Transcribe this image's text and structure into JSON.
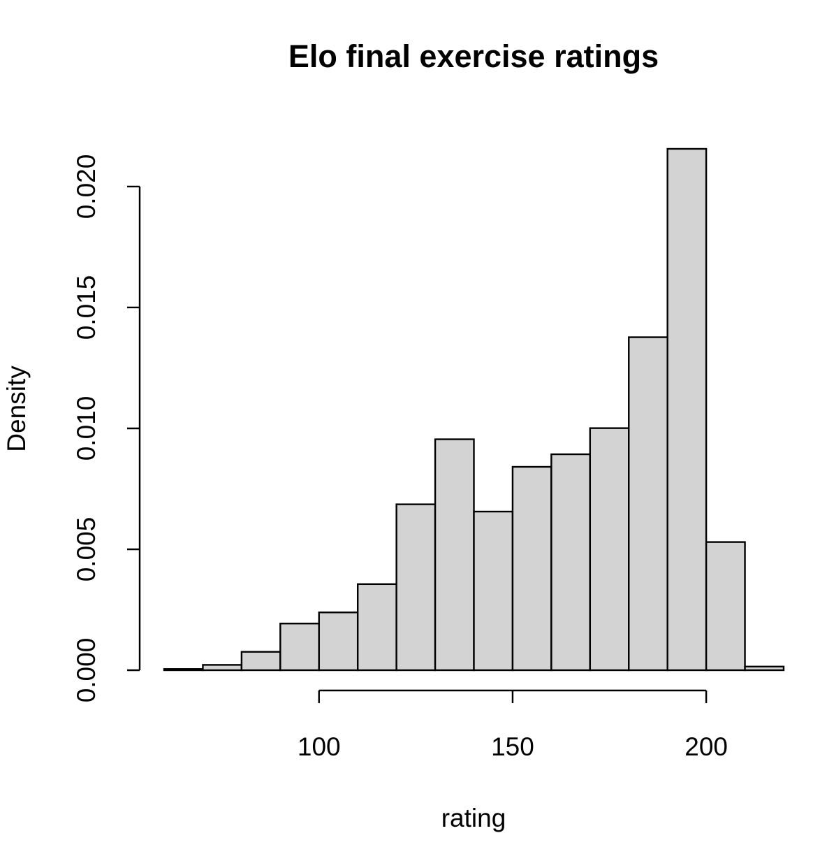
{
  "chart_data": {
    "type": "bar",
    "title": "Elo final exercise ratings",
    "xlabel": "rating",
    "ylabel": "Density",
    "bin_width": 10,
    "bin_starts": [
      60,
      70,
      80,
      90,
      100,
      110,
      120,
      130,
      140,
      150,
      160,
      170,
      180,
      190,
      200,
      210
    ],
    "values": [
      5e-05,
      0.00022,
      0.00076,
      0.00193,
      0.00239,
      0.00356,
      0.00686,
      0.00955,
      0.00656,
      0.00841,
      0.00893,
      0.01001,
      0.01377,
      0.02156,
      0.0053,
      0.00015
    ],
    "xlim": [
      60,
      220
    ],
    "ylim": [
      0,
      0.02156
    ],
    "x_ticks": [
      100,
      150,
      200
    ],
    "x_tick_labels": [
      "100",
      "150",
      "200"
    ],
    "y_ticks": [
      0,
      0.005,
      0.01,
      0.015,
      0.02
    ],
    "y_tick_labels": [
      "0.000",
      "0.005",
      "0.010",
      "0.015",
      "0.020"
    ],
    "grid": false,
    "colors": {
      "bar_fill": "#d3d3d3",
      "bar_stroke": "#000000"
    }
  }
}
